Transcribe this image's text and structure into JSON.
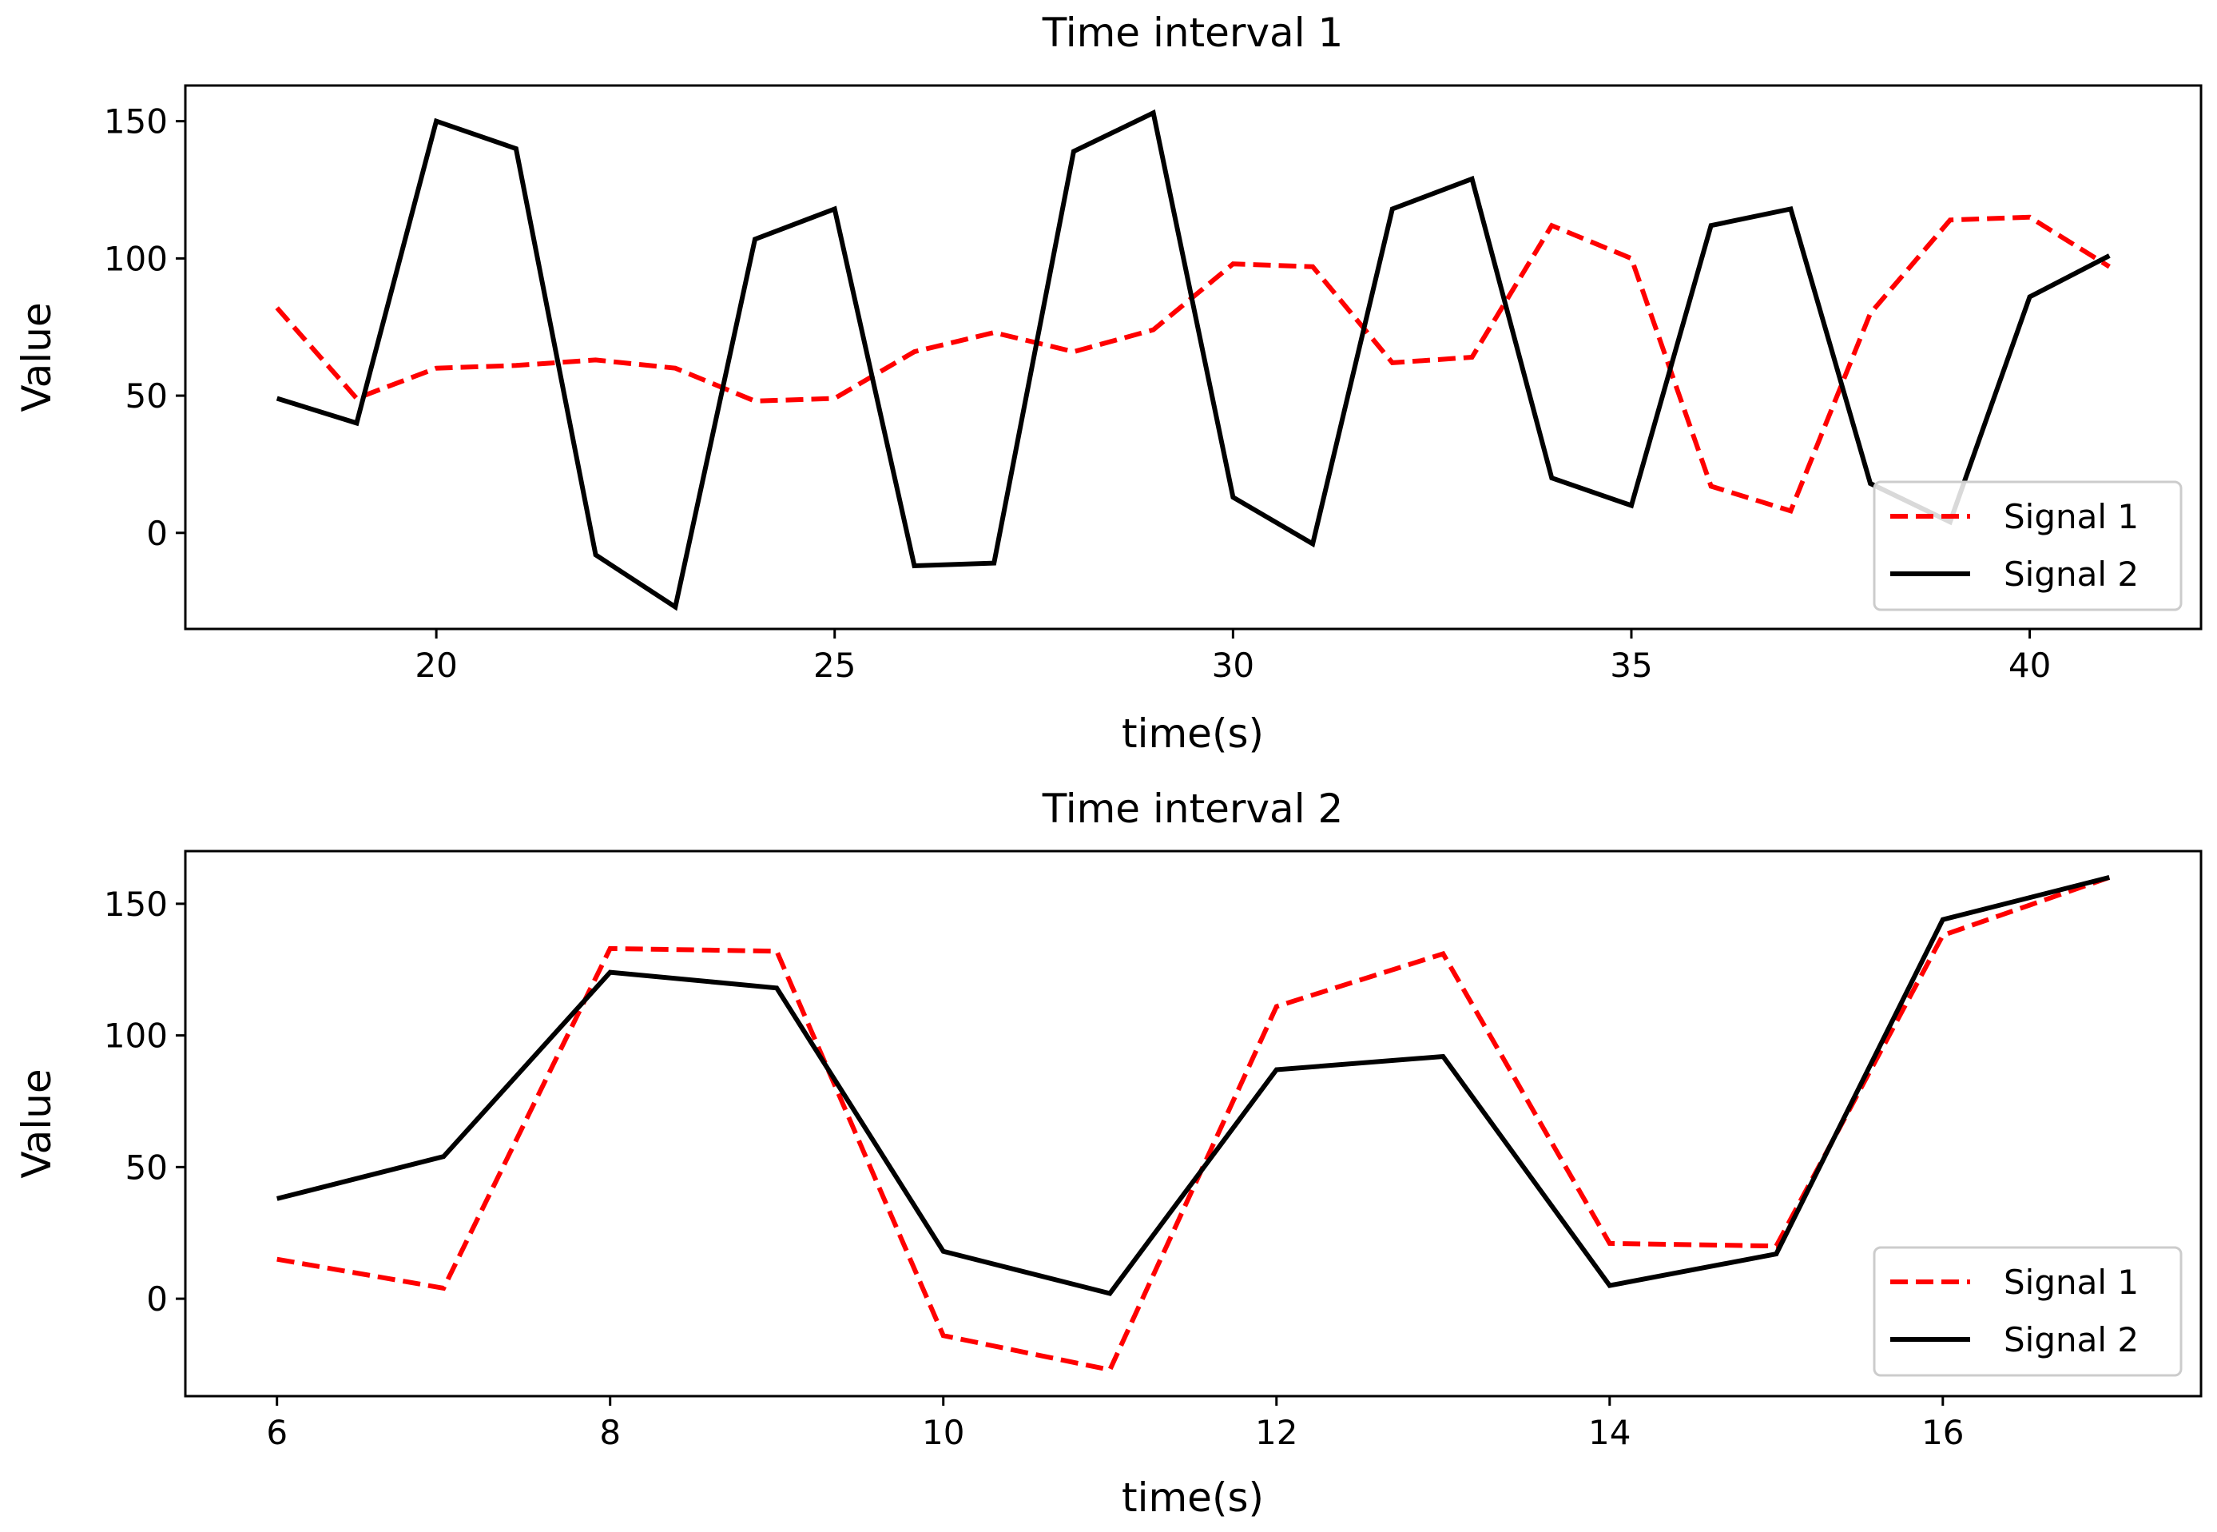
{
  "chart_data": [
    {
      "type": "line",
      "title": "Time interval 1",
      "xlabel": "time(s)",
      "ylabel": "Value",
      "xlim": [
        16.85,
        42.15
      ],
      "ylim": [
        -35,
        163
      ],
      "xticks": [
        20,
        25,
        30,
        35,
        40
      ],
      "yticks": [
        0,
        50,
        100,
        150
      ],
      "legend_position": "lower-right",
      "x": [
        18,
        19,
        20,
        21,
        22,
        23,
        24,
        25,
        26,
        27,
        28,
        29,
        30,
        31,
        32,
        33,
        34,
        35,
        36,
        37,
        38,
        39,
        40,
        41
      ],
      "series": [
        {
          "name": "Signal 1",
          "color": "#ff0000",
          "style": "dashed",
          "values": [
            82,
            49,
            60,
            61,
            63,
            60,
            48,
            49,
            66,
            73,
            66,
            74,
            98,
            97,
            62,
            64,
            112,
            100,
            17,
            8,
            80,
            114,
            115,
            97
          ]
        },
        {
          "name": "Signal 2",
          "color": "#000000",
          "style": "solid",
          "values": [
            49,
            40,
            150,
            140,
            -8,
            -27,
            107,
            118,
            -12,
            -11,
            139,
            153,
            13,
            -4,
            118,
            129,
            20,
            10,
            112,
            118,
            18,
            4,
            86,
            101
          ]
        }
      ]
    },
    {
      "type": "line",
      "title": "Time interval 2",
      "xlabel": "time(s)",
      "ylabel": "Value",
      "xlim": [
        5.45,
        17.55
      ],
      "ylim": [
        -37,
        170
      ],
      "xticks": [
        6,
        8,
        10,
        12,
        14,
        16
      ],
      "yticks": [
        0,
        50,
        100,
        150
      ],
      "legend_position": "lower-right",
      "x": [
        6,
        7,
        8,
        9,
        10,
        11,
        12,
        13,
        14,
        15,
        16,
        17
      ],
      "series": [
        {
          "name": "Signal 1",
          "color": "#ff0000",
          "style": "dashed",
          "values": [
            15,
            4,
            133,
            132,
            -14,
            -27,
            111,
            131,
            21,
            20,
            138,
            160
          ]
        },
        {
          "name": "Signal 2",
          "color": "#000000",
          "style": "solid",
          "values": [
            38,
            54,
            124,
            118,
            18,
            2,
            87,
            92,
            5,
            17,
            144,
            160
          ]
        }
      ]
    }
  ]
}
